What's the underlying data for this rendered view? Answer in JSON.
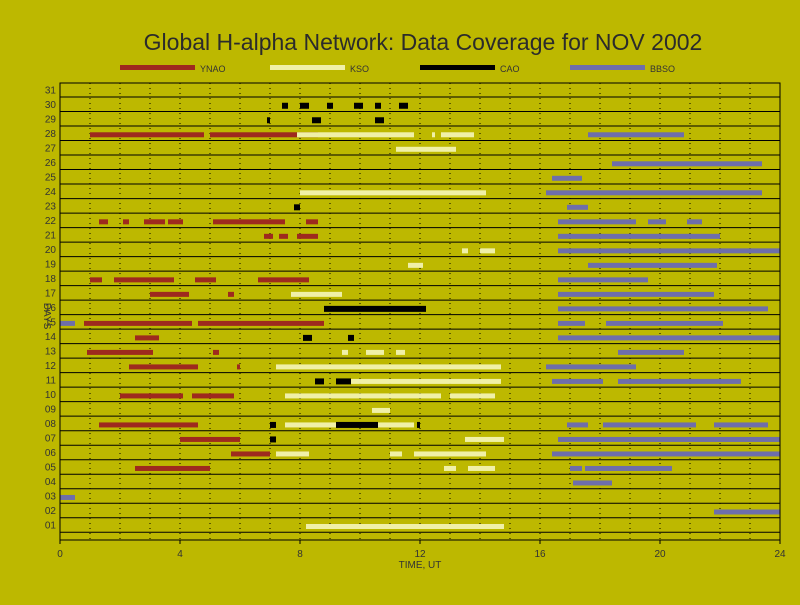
{
  "chart_data": {
    "type": "timeline",
    "title": "Global H-alpha Network: Data Coverage for NOV 2002",
    "xlabel": "TIME, UT",
    "ylabel": "DAYS",
    "xlim": [
      0,
      24
    ],
    "ylim": [
      0.5,
      31.5
    ],
    "xticks": [
      0,
      4,
      8,
      12,
      16,
      20,
      24
    ],
    "yticks": [
      "01",
      "02",
      "03",
      "04",
      "05",
      "06",
      "07",
      "08",
      "09",
      "10",
      "11",
      "12",
      "13",
      "14",
      "15",
      "16",
      "17",
      "18",
      "19",
      "20",
      "21",
      "22",
      "23",
      "24",
      "25",
      "26",
      "27",
      "28",
      "29",
      "30",
      "31"
    ],
    "grid": "dotted vertical",
    "legend_position": "top",
    "background_color": "#bdb800",
    "series": [
      {
        "name": "YNAO",
        "color": "#9e2a1e",
        "offset": 0.0,
        "segments": [
          [
            28,
            1.0,
            4.8
          ],
          [
            28,
            5.0,
            5.1
          ],
          [
            28,
            5.1,
            8.6
          ],
          [
            22,
            1.3,
            1.6
          ],
          [
            22,
            2.1,
            2.3
          ],
          [
            22,
            2.8,
            3.5
          ],
          [
            22,
            3.6,
            4.1
          ],
          [
            22,
            5.1,
            7.5
          ],
          [
            22,
            8.2,
            8.6
          ],
          [
            21,
            6.8,
            7.1
          ],
          [
            21,
            7.3,
            7.6
          ],
          [
            21,
            7.9,
            8.6
          ],
          [
            18,
            1.0,
            1.4
          ],
          [
            18,
            1.8,
            3.8
          ],
          [
            18,
            4.5,
            5.2
          ],
          [
            18,
            6.6,
            8.3
          ],
          [
            17,
            3.0,
            4.3
          ],
          [
            17,
            5.6,
            5.8
          ],
          [
            15,
            0.8,
            4.4
          ],
          [
            15,
            4.6,
            8.8
          ],
          [
            14,
            2.5,
            3.3
          ],
          [
            13,
            0.9,
            3.1
          ],
          [
            13,
            5.1,
            5.3
          ],
          [
            12,
            2.3,
            4.6
          ],
          [
            12,
            5.9,
            6.0
          ],
          [
            10,
            2.0,
            4.1
          ],
          [
            10,
            4.4,
            5.8
          ],
          [
            8,
            1.3,
            4.6
          ],
          [
            7,
            4.0,
            6.0
          ],
          [
            6,
            5.7,
            7.0
          ],
          [
            6,
            7.3,
            8.3
          ],
          [
            5,
            2.5,
            5.0
          ]
        ]
      },
      {
        "name": "KSO",
        "color": "#f0f0a8",
        "offset": 0.0,
        "segments": [
          [
            28,
            7.9,
            11.8
          ],
          [
            28,
            12.4,
            12.5
          ],
          [
            28,
            12.7,
            13.8
          ],
          [
            27,
            11.2,
            13.2
          ],
          [
            24,
            8.0,
            14.2
          ],
          [
            20,
            13.4,
            13.6
          ],
          [
            20,
            14.0,
            14.5
          ],
          [
            19,
            11.6,
            12.1
          ],
          [
            17,
            7.7,
            9.4
          ],
          [
            13,
            9.4,
            9.6
          ],
          [
            13,
            10.2,
            10.8
          ],
          [
            13,
            11.2,
            11.5
          ],
          [
            12,
            7.2,
            14.7
          ],
          [
            11,
            9.4,
            14.7
          ],
          [
            10,
            7.5,
            12.7
          ],
          [
            10,
            13.0,
            14.5
          ],
          [
            9,
            10.4,
            11.0
          ],
          [
            8,
            7.5,
            9.7
          ],
          [
            8,
            10.6,
            11.8
          ],
          [
            7,
            13.5,
            14.8
          ],
          [
            6,
            7.2,
            8.3
          ],
          [
            6,
            11.0,
            11.4
          ],
          [
            6,
            11.8,
            14.2
          ],
          [
            5,
            12.8,
            13.2
          ],
          [
            5,
            13.6,
            14.5
          ],
          [
            1,
            8.2,
            14.8
          ]
        ]
      },
      {
        "name": "CAO",
        "color": "#000000",
        "offset": 0.0,
        "segments": [
          [
            30,
            7.4,
            7.6
          ],
          [
            30,
            8.0,
            8.3
          ],
          [
            30,
            8.9,
            9.1
          ],
          [
            30,
            9.8,
            10.1
          ],
          [
            30,
            10.5,
            10.7
          ],
          [
            30,
            11.3,
            11.6
          ],
          [
            29,
            6.9,
            7.0
          ],
          [
            29,
            8.4,
            8.7
          ],
          [
            29,
            10.5,
            10.8
          ],
          [
            23,
            7.8,
            8.0
          ],
          [
            16,
            8.8,
            12.2
          ],
          [
            14,
            8.1,
            8.4
          ],
          [
            14,
            9.6,
            9.8
          ],
          [
            11,
            8.5,
            8.8
          ],
          [
            11,
            9.2,
            9.7
          ],
          [
            8,
            7.0,
            7.2
          ],
          [
            8,
            9.2,
            10.6
          ],
          [
            8,
            11.9,
            12.0
          ],
          [
            7,
            7.0,
            7.2
          ]
        ]
      },
      {
        "name": "BBSO",
        "color": "#6e6eaa",
        "offset": 0.0,
        "segments": [
          [
            28,
            17.6,
            20.8
          ],
          [
            26,
            18.4,
            23.4
          ],
          [
            25,
            16.4,
            17.4
          ],
          [
            24,
            16.2,
            23.4
          ],
          [
            23,
            16.9,
            17.6
          ],
          [
            22,
            16.6,
            19.2
          ],
          [
            22,
            19.6,
            20.2
          ],
          [
            22,
            20.9,
            21.4
          ],
          [
            21,
            16.6,
            22.0
          ],
          [
            20,
            16.6,
            24.0
          ],
          [
            19,
            17.6,
            21.9
          ],
          [
            18,
            16.6,
            19.6
          ],
          [
            17,
            16.6,
            21.8
          ],
          [
            16,
            16.6,
            23.6
          ],
          [
            15,
            0.0,
            0.5
          ],
          [
            15,
            16.6,
            17.5
          ],
          [
            15,
            18.2,
            22.1
          ],
          [
            14,
            16.6,
            24.0
          ],
          [
            13,
            18.6,
            20.8
          ],
          [
            12,
            16.2,
            19.2
          ],
          [
            11,
            16.4,
            18.1
          ],
          [
            11,
            18.6,
            22.7
          ],
          [
            8,
            16.9,
            17.6
          ],
          [
            8,
            18.1,
            21.2
          ],
          [
            8,
            21.8,
            23.6
          ],
          [
            7,
            16.6,
            24.0
          ],
          [
            6,
            16.4,
            24.0
          ],
          [
            5,
            17.0,
            17.4
          ],
          [
            5,
            17.5,
            20.4
          ],
          [
            4,
            17.1,
            18.4
          ],
          [
            3,
            0.0,
            0.5
          ],
          [
            2,
            21.8,
            24.0
          ]
        ]
      }
    ]
  }
}
